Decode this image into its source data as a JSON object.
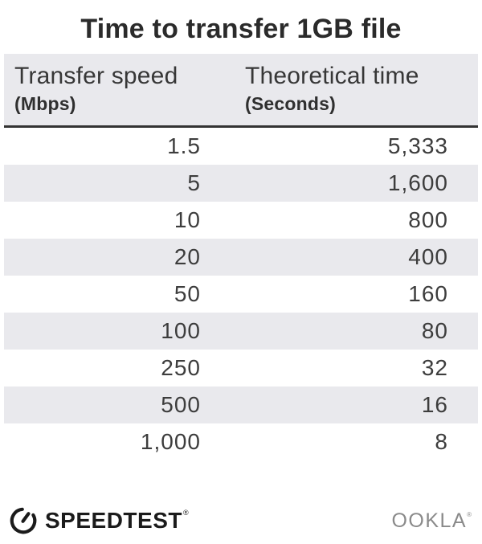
{
  "title": "Time to transfer 1GB file",
  "table": {
    "columns": [
      {
        "label": "Transfer speed",
        "unit": "(Mbps)"
      },
      {
        "label": "Theoretical time",
        "unit": "(Seconds)"
      }
    ],
    "rows": [
      {
        "speed": "1.5",
        "time": "5,333"
      },
      {
        "speed": "5",
        "time": "1,600"
      },
      {
        "speed": "10",
        "time": "800"
      },
      {
        "speed": "20",
        "time": "400"
      },
      {
        "speed": "50",
        "time": "160"
      },
      {
        "speed": "100",
        "time": "80"
      },
      {
        "speed": "250",
        "time": "32"
      },
      {
        "speed": "500",
        "time": "16"
      },
      {
        "speed": "1,000",
        "time": "8"
      }
    ]
  },
  "footer": {
    "speedtest_label": "SPEEDTEST",
    "speedtest_reg": "®",
    "ookla_label": "OOKLA",
    "ookla_tm": "®"
  },
  "colors": {
    "row_stripe": "#e9e9ed",
    "header_bg": "#e9e9ed",
    "header_border": "#333333",
    "title_text": "#2b2b2b",
    "body_text": "#3d3d3d",
    "speedtest_logo": "#1b1b1b",
    "ookla_logo": "#8a8a8a"
  },
  "chart_data": {
    "type": "table",
    "title": "Time to transfer 1GB file",
    "columns": [
      "Transfer speed (Mbps)",
      "Theoretical time (Seconds)"
    ],
    "rows": [
      [
        1.5,
        5333
      ],
      [
        5,
        1600
      ],
      [
        10,
        800
      ],
      [
        20,
        400
      ],
      [
        50,
        160
      ],
      [
        100,
        80
      ],
      [
        250,
        32
      ],
      [
        500,
        16
      ],
      [
        1000,
        8
      ]
    ],
    "layout": {
      "zebra_striping": true,
      "value_alignment": "right"
    }
  }
}
